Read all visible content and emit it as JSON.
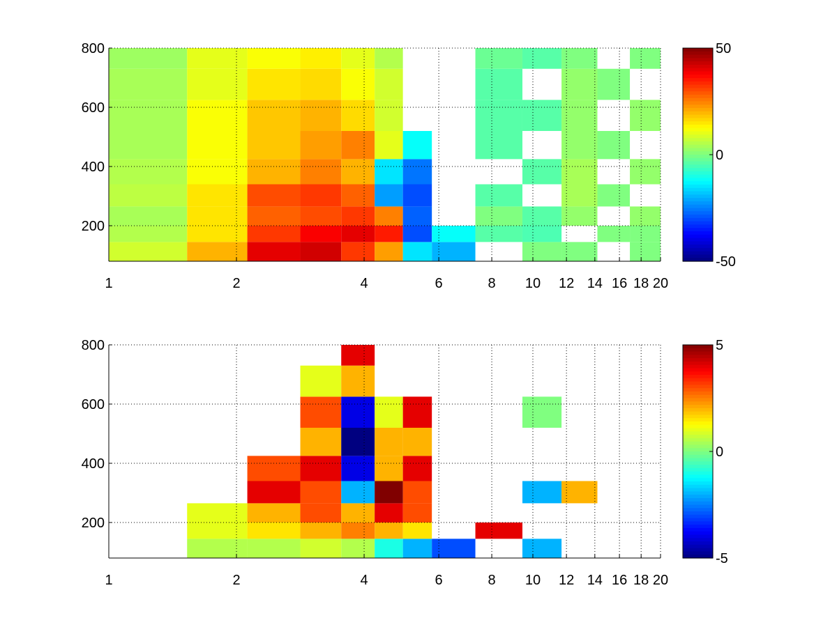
{
  "chart_data": [
    {
      "type": "heatmap",
      "title": "",
      "xlabel": "",
      "ylabel": "",
      "xscale": "log",
      "xlim": [
        1,
        20
      ],
      "ylim": [
        80,
        800
      ],
      "x_ticks": [
        1,
        2,
        4,
        6,
        8,
        10,
        12,
        14,
        16,
        18,
        20
      ],
      "x_tick_labels": [
        "1",
        "2",
        "4",
        "6",
        "8",
        "10",
        "12",
        "14",
        "16",
        "18",
        "20"
      ],
      "y_ticks": [
        200,
        400,
        600,
        800
      ],
      "y_tick_labels": [
        "200",
        "400",
        "600",
        "800"
      ],
      "grid": "dotted",
      "colormap": "jet",
      "colorbar": {
        "min": -50,
        "max": 50,
        "ticks": [
          50,
          0,
          -50
        ],
        "tick_labels": [
          "50",
          "0",
          "-50"
        ]
      },
      "x_centers": [
        1.3,
        1.8,
        2.5,
        3.2,
        3.9,
        4.6,
        5.3,
        6.3,
        8.5,
        10.5,
        13,
        15.5,
        18.5
      ],
      "y_centers": [
        120,
        170,
        230,
        300,
        380,
        470,
        570,
        680,
        780
      ],
      "values": [
        [
          8,
          20,
          40,
          42,
          32,
          22,
          -15,
          -20,
          null,
          0,
          0,
          null,
          0
        ],
        [
          5,
          15,
          32,
          38,
          40,
          35,
          -30,
          -12,
          -4,
          -5,
          null,
          0,
          0
        ],
        [
          4,
          15,
          28,
          30,
          32,
          25,
          -28,
          null,
          0,
          -4,
          2,
          null,
          2
        ],
        [
          6,
          15,
          30,
          32,
          28,
          -22,
          -30,
          null,
          -4,
          null,
          4,
          0,
          null
        ],
        [
          5,
          12,
          20,
          25,
          20,
          -15,
          -26,
          null,
          null,
          -4,
          4,
          null,
          2
        ],
        [
          4,
          12,
          18,
          22,
          25,
          10,
          -12,
          null,
          -4,
          null,
          2,
          0,
          null
        ],
        [
          4,
          12,
          18,
          20,
          16,
          8,
          null,
          null,
          -4,
          -4,
          2,
          null,
          2
        ],
        [
          4,
          10,
          15,
          16,
          12,
          8,
          null,
          null,
          -4,
          null,
          2,
          0,
          null
        ],
        [
          3,
          10,
          12,
          14,
          10,
          5,
          null,
          null,
          -2,
          -4,
          0,
          null,
          0
        ]
      ]
    },
    {
      "type": "heatmap",
      "title": "",
      "xlabel": "",
      "ylabel": "",
      "xscale": "log",
      "xlim": [
        1,
        20
      ],
      "ylim": [
        80,
        800
      ],
      "x_ticks": [
        1,
        2,
        4,
        6,
        8,
        10,
        12,
        14,
        16,
        18,
        20
      ],
      "x_tick_labels": [
        "1",
        "2",
        "4",
        "6",
        "8",
        "10",
        "12",
        "14",
        "16",
        "18",
        "20"
      ],
      "y_ticks": [
        200,
        400,
        600,
        800
      ],
      "y_tick_labels": [
        "200",
        "400",
        "600",
        "800"
      ],
      "grid": "dotted",
      "colormap": "jet",
      "colorbar": {
        "min": -5,
        "max": 5,
        "ticks": [
          5,
          0,
          -5
        ],
        "tick_labels": [
          "5",
          "0",
          "-5"
        ]
      },
      "x_centers": [
        1.3,
        1.8,
        2.5,
        3.2,
        3.9,
        4.6,
        5.3,
        6.3,
        8.5,
        10.5,
        13,
        15.5,
        18.5
      ],
      "y_centers": [
        120,
        170,
        230,
        300,
        380,
        470,
        570,
        680,
        780
      ],
      "values": [
        [
          null,
          0.5,
          0.5,
          0.8,
          0.5,
          -1,
          -2,
          -3,
          null,
          -2,
          null,
          null,
          null
        ],
        [
          null,
          1,
          1.5,
          2,
          2.5,
          2,
          1.5,
          null,
          4,
          null,
          null,
          null,
          null
        ],
        [
          null,
          1,
          2,
          3,
          2,
          4,
          3,
          null,
          null,
          null,
          null,
          null,
          null
        ],
        [
          null,
          null,
          4,
          3,
          -2,
          5,
          3,
          null,
          null,
          -2,
          2,
          null,
          null
        ],
        [
          null,
          null,
          3,
          4,
          -4,
          2,
          4,
          null,
          null,
          null,
          null,
          null,
          null
        ],
        [
          null,
          null,
          null,
          2,
          -5,
          2,
          2,
          null,
          null,
          null,
          null,
          null,
          null
        ],
        [
          null,
          null,
          null,
          3,
          -4,
          1,
          4,
          null,
          null,
          0,
          null,
          null,
          null
        ],
        [
          null,
          null,
          null,
          1,
          2,
          null,
          null,
          null,
          null,
          null,
          null,
          null,
          null
        ],
        [
          null,
          null,
          null,
          null,
          4,
          null,
          null,
          null,
          null,
          null,
          null,
          null,
          null
        ]
      ]
    }
  ]
}
